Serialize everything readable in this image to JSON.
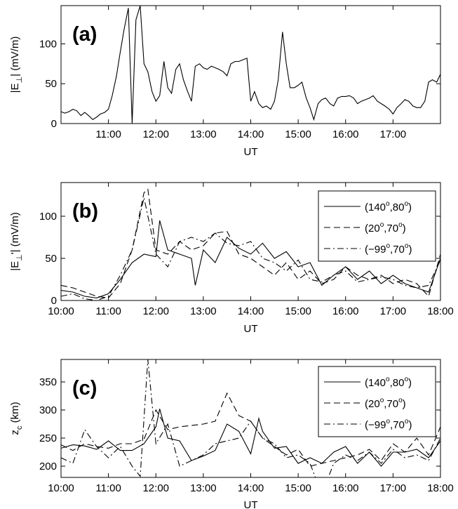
{
  "chart_data": [
    {
      "type": "line",
      "panel_label": "(a)",
      "ylabel": {
        "main": "|E",
        "sub": "⊥",
        "rest": "| (mV/m)"
      },
      "xlabel": "UT",
      "xlim": [
        10.0,
        18.0
      ],
      "ylim": [
        0,
        148
      ],
      "yticks": [
        0,
        50,
        100
      ],
      "ytick_labels": [
        "0",
        "50",
        "100"
      ],
      "xticks": [
        11,
        12,
        13,
        14,
        15,
        16,
        17
      ],
      "xtick_labels": [
        "11:00",
        "12:00",
        "13:00",
        "14:00",
        "15:00",
        "16:00",
        "17:00"
      ],
      "legend": null,
      "series": [
        {
          "style": "solid",
          "x": [
            10.0,
            10.08,
            10.17,
            10.25,
            10.33,
            10.42,
            10.5,
            10.58,
            10.67,
            10.75,
            10.83,
            10.92,
            11.0,
            11.08,
            11.17,
            11.25,
            11.33,
            11.42,
            11.5,
            11.58,
            11.67,
            11.75,
            11.83,
            11.92,
            12.0,
            12.08,
            12.17,
            12.25,
            12.33,
            12.42,
            12.5,
            12.58,
            12.67,
            12.75,
            12.83,
            12.92,
            13.0,
            13.08,
            13.17,
            13.25,
            13.33,
            13.42,
            13.5,
            13.58,
            13.67,
            13.75,
            13.83,
            13.92,
            14.0,
            14.08,
            14.17,
            14.25,
            14.33,
            14.42,
            14.5,
            14.58,
            14.67,
            14.75,
            14.83,
            14.92,
            15.0,
            15.08,
            15.17,
            15.25,
            15.33,
            15.42,
            15.5,
            15.58,
            15.67,
            15.75,
            15.83,
            15.92,
            16.0,
            16.08,
            16.17,
            16.25,
            16.33,
            16.42,
            16.5,
            16.58,
            16.67,
            16.75,
            16.83,
            16.92,
            17.0,
            17.08,
            17.17,
            17.25,
            17.33,
            17.42,
            17.5,
            17.58,
            17.67,
            17.75,
            17.83,
            17.92,
            18.0
          ],
          "y": [
            15,
            13,
            15,
            18,
            16,
            10,
            14,
            10,
            5,
            8,
            12,
            14,
            18,
            35,
            60,
            90,
            118,
            145,
            0,
            130,
            148,
            75,
            65,
            40,
            28,
            35,
            78,
            45,
            38,
            68,
            75,
            55,
            40,
            28,
            72,
            75,
            70,
            68,
            72,
            70,
            68,
            65,
            60,
            75,
            78,
            78,
            80,
            82,
            28,
            40,
            25,
            20,
            22,
            18,
            28,
            55,
            115,
            75,
            45,
            45,
            48,
            52,
            32,
            20,
            5,
            25,
            30,
            32,
            25,
            22,
            32,
            34,
            34,
            35,
            32,
            25,
            28,
            30,
            32,
            35,
            28,
            25,
            22,
            18,
            12,
            20,
            25,
            30,
            28,
            22,
            20,
            20,
            28,
            52,
            55,
            52,
            62
          ]
        }
      ]
    },
    {
      "type": "line",
      "panel_label": "(b)",
      "ylabel": {
        "main": "|E",
        "sub": "⊥",
        "rest": "'| (mV/m)"
      },
      "xlabel": "UT",
      "xlim": [
        10.0,
        18.0
      ],
      "ylim": [
        0,
        140
      ],
      "yticks": [
        0,
        50,
        100
      ],
      "ytick_labels": [
        "0",
        "50",
        "100"
      ],
      "xticks": [
        10,
        11,
        12,
        13,
        14,
        15,
        16,
        17,
        18
      ],
      "xtick_labels": [
        "10:00",
        "11:00",
        "12:00",
        "13:00",
        "14:00",
        "15:00",
        "16:00",
        "17:00",
        "18:00"
      ],
      "legend": [
        {
          "style": "solid",
          "a": "140",
          "b": "80"
        },
        {
          "style": "dashed",
          "a": "20",
          "b": "70"
        },
        {
          "style": "dashdot",
          "a": "−99",
          "b": "70"
        }
      ],
      "series": [
        {
          "style": "solid",
          "x": [
            10.0,
            10.25,
            10.5,
            10.75,
            11.0,
            11.25,
            11.5,
            11.75,
            12.0,
            12.08,
            12.25,
            12.5,
            12.75,
            12.83,
            13.0,
            13.25,
            13.5,
            13.75,
            14.0,
            14.25,
            14.5,
            14.75,
            15.0,
            15.25,
            15.5,
            15.75,
            16.0,
            16.25,
            16.5,
            16.75,
            17.0,
            17.25,
            17.5,
            17.75,
            18.0
          ],
          "y": [
            12,
            10,
            5,
            3,
            8,
            25,
            45,
            55,
            52,
            95,
            60,
            55,
            50,
            18,
            60,
            45,
            75,
            62,
            55,
            68,
            50,
            58,
            40,
            45,
            18,
            30,
            40,
            25,
            35,
            20,
            30,
            20,
            15,
            10,
            50
          ]
        },
        {
          "style": "dashed",
          "x": [
            10.0,
            10.25,
            10.5,
            10.75,
            11.0,
            11.25,
            11.5,
            11.75,
            11.83,
            12.0,
            12.25,
            12.5,
            12.75,
            13.0,
            13.25,
            13.5,
            13.75,
            14.0,
            14.25,
            14.5,
            14.75,
            15.0,
            15.25,
            15.5,
            15.75,
            16.0,
            16.25,
            16.5,
            16.75,
            17.0,
            17.25,
            17.5,
            17.75,
            18.0
          ],
          "y": [
            18,
            15,
            10,
            5,
            3,
            20,
            60,
            128,
            132,
            60,
            55,
            70,
            60,
            65,
            80,
            82,
            55,
            50,
            40,
            30,
            45,
            25,
            35,
            20,
            25,
            40,
            30,
            25,
            30,
            20,
            25,
            20,
            5,
            55
          ]
        },
        {
          "style": "dashdot",
          "x": [
            10.0,
            10.25,
            10.5,
            10.75,
            11.0,
            11.25,
            11.5,
            11.75,
            12.0,
            12.25,
            12.5,
            12.75,
            13.0,
            13.25,
            13.5,
            13.75,
            14.0,
            14.25,
            14.5,
            14.75,
            15.0,
            15.25,
            15.5,
            15.75,
            16.0,
            16.25,
            16.5,
            16.75,
            17.0,
            17.25,
            17.5,
            17.75,
            18.0
          ],
          "y": [
            5,
            8,
            2,
            0,
            5,
            30,
            60,
            122,
            55,
            40,
            70,
            75,
            70,
            80,
            68,
            65,
            70,
            50,
            45,
            35,
            48,
            25,
            22,
            30,
            35,
            22,
            25,
            28,
            25,
            18,
            15,
            18,
            48
          ]
        }
      ]
    },
    {
      "type": "line",
      "panel_label": "(c)",
      "ylabel": {
        "main": "z",
        "sub": "c",
        "rest": " (km)"
      },
      "xlabel": "UT",
      "xlim": [
        10.0,
        18.0
      ],
      "ylim": [
        180,
        390
      ],
      "yticks": [
        200,
        250,
        300,
        350
      ],
      "ytick_labels": [
        "200",
        "250",
        "300",
        "350"
      ],
      "xticks": [
        10,
        11,
        12,
        13,
        14,
        15,
        16,
        17,
        18
      ],
      "xtick_labels": [
        "10:00",
        "11:00",
        "12:00",
        "13:00",
        "14:00",
        "15:00",
        "16:00",
        "17:00",
        "18:00"
      ],
      "legend": [
        {
          "style": "solid",
          "a": "140",
          "b": "80"
        },
        {
          "style": "dashed",
          "a": "20",
          "b": "70"
        },
        {
          "style": "dashdot",
          "a": "−99",
          "b": "70"
        }
      ],
      "series": [
        {
          "style": "solid",
          "x": [
            10.0,
            10.25,
            10.5,
            10.75,
            11.0,
            11.25,
            11.5,
            11.75,
            12.0,
            12.08,
            12.25,
            12.5,
            12.75,
            13.0,
            13.25,
            13.5,
            13.75,
            14.0,
            14.17,
            14.25,
            14.5,
            14.75,
            15.0,
            15.25,
            15.5,
            15.75,
            16.0,
            16.25,
            16.5,
            16.75,
            17.0,
            17.25,
            17.5,
            17.75,
            18.0
          ],
          "y": [
            232,
            238,
            236,
            230,
            245,
            228,
            228,
            240,
            270,
            302,
            250,
            245,
            210,
            218,
            228,
            275,
            262,
            222,
            285,
            262,
            232,
            235,
            205,
            215,
            205,
            225,
            235,
            205,
            225,
            200,
            225,
            225,
            230,
            215,
            245
          ]
        },
        {
          "style": "dashed",
          "x": [
            10.0,
            10.25,
            10.5,
            10.75,
            11.0,
            11.25,
            11.5,
            11.75,
            12.0,
            12.25,
            12.5,
            13.0,
            13.25,
            13.5,
            13.75,
            14.0,
            14.25,
            14.5,
            14.75,
            15.0,
            15.25,
            15.5,
            15.75,
            16.0,
            16.25,
            16.5,
            16.75,
            17.0,
            17.25,
            17.5,
            17.75,
            18.0
          ],
          "y": [
            238,
            228,
            240,
            235,
            232,
            240,
            240,
            248,
            300,
            265,
            270,
            275,
            280,
            330,
            290,
            280,
            250,
            235,
            220,
            230,
            200,
            205,
            210,
            215,
            220,
            230,
            210,
            240,
            225,
            250,
            220,
            270
          ]
        },
        {
          "style": "dashdot",
          "x": [
            10.0,
            10.25,
            10.5,
            10.75,
            11.0,
            11.25,
            11.5,
            11.67,
            11.83,
            12.0,
            12.25,
            12.5,
            13.0,
            13.25,
            13.5,
            13.75,
            14.0,
            14.25,
            14.5,
            14.75,
            15.0,
            15.25,
            15.5,
            15.75,
            16.0,
            16.25,
            16.5,
            16.75,
            17.0,
            17.25,
            17.5,
            17.75,
            18.0
          ],
          "y": [
            215,
            205,
            265,
            235,
            215,
            235,
            200,
            182,
            390,
            240,
            275,
            200,
            220,
            240,
            245,
            250,
            280,
            250,
            240,
            215,
            220,
            205,
            150,
            205,
            220,
            210,
            225,
            205,
            230,
            215,
            220,
            210,
            250
          ]
        }
      ]
    }
  ]
}
